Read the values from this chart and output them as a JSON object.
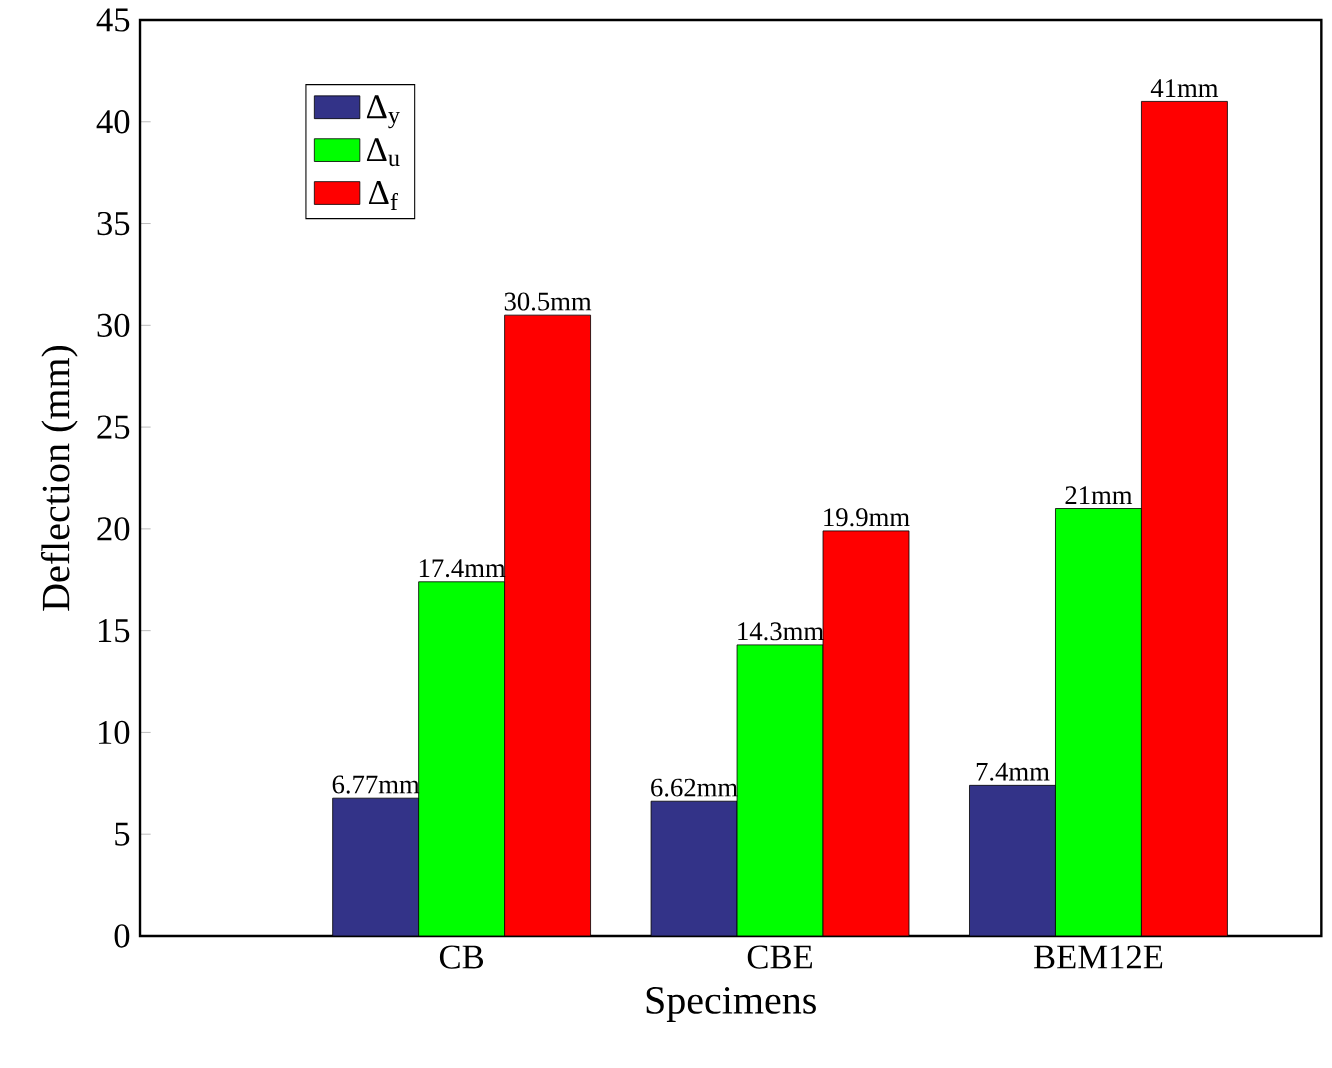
{
  "chart_data": {
    "type": "bar",
    "xlabel": "Specimens",
    "ylabel": "Deflection (mm)",
    "categories": [
      "CB",
      "CBE",
      "BEM12E"
    ],
    "series": [
      {
        "name": "Δ$_{y}$",
        "color": "#333388",
        "values": [
          6.77,
          6.62,
          7.4
        ],
        "value_labels": [
          "6.77mm",
          "6.62mm",
          "7.4mm"
        ]
      },
      {
        "name": "Δ$_{u}$",
        "color": "#00ff00",
        "values": [
          17.4,
          14.3,
          21
        ],
        "value_labels": [
          "17.4mm",
          "14.3mm",
          "21mm"
        ]
      },
      {
        "name": "Δ$_{f}$",
        "color": "#ff0000",
        "values": [
          30.5,
          19.9,
          41
        ],
        "value_labels": [
          "30.5mm",
          "19.9mm",
          "41mm"
        ]
      }
    ],
    "ylim": [
      0,
      45
    ],
    "yticks": [
      0,
      5,
      10,
      15,
      20,
      25,
      30,
      35,
      40,
      45
    ],
    "legend": "top left",
    "grid": false
  }
}
